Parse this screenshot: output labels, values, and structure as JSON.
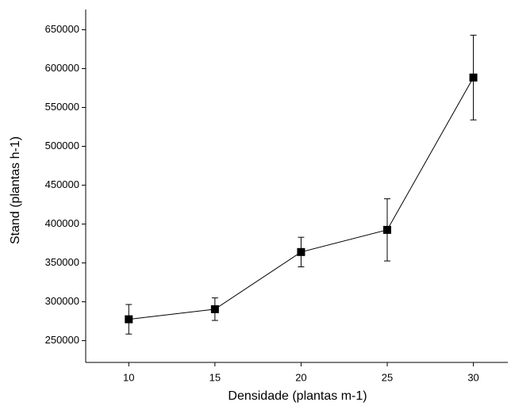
{
  "chart_data": {
    "type": "line",
    "x_label": "Densidade (plantas m-1)",
    "y_label": "Stand (plantas h-1)",
    "x": [
      10,
      15,
      20,
      25,
      30
    ],
    "series": [
      {
        "color": "#000000",
        "values": [
          277500,
          290500,
          364000,
          392500,
          588500
        ],
        "errors": [
          19000,
          14500,
          19000,
          40000,
          54500
        ]
      }
    ],
    "xlim": [
      7.5,
      32
    ],
    "xticks": [
      10,
      15,
      20,
      25,
      30
    ],
    "ylim": [
      222000,
      676000
    ],
    "yticks": [
      250000,
      300000,
      350000,
      400000,
      450000,
      500000,
      550000,
      600000,
      650000
    ]
  }
}
